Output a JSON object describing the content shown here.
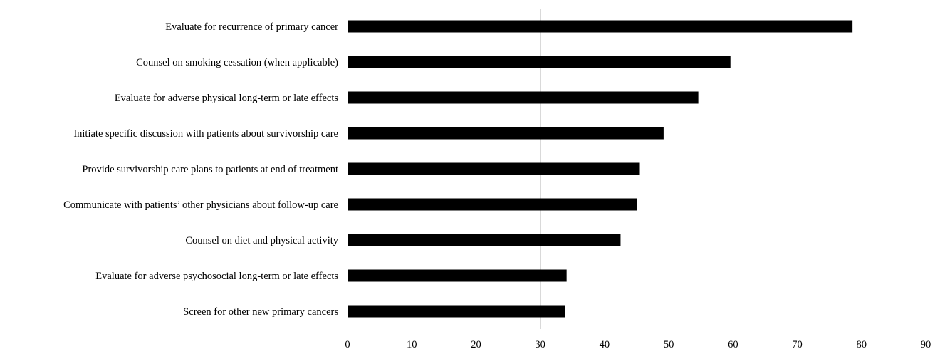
{
  "chart_data": {
    "type": "bar",
    "orientation": "horizontal",
    "title": "",
    "xlabel": "",
    "ylabel": "",
    "xlim": [
      0,
      90
    ],
    "x_ticks": [
      0,
      10,
      20,
      30,
      40,
      50,
      60,
      70,
      80,
      90
    ],
    "grid": "vertical",
    "legend": "none",
    "bar_color": "#000000",
    "categories": [
      "Evaluate for recurrence of primary cancer",
      "Counsel on smoking cessation (when applicable)",
      "Evaluate for adverse physical long-term or late effects",
      "Initiate specific discussion with patients about survivorship care",
      "Provide survivorship care plans to patients at end of  treatment",
      "Communicate with patients’ other physicians about follow-up care",
      "Counsel on diet and physical activity",
      "Evaluate for adverse psychosocial long-term or late effects",
      "Screen for other new primary cancers"
    ],
    "values": [
      78.6,
      59.6,
      54.6,
      49.2,
      45.5,
      45.1,
      42.5,
      34.1,
      33.9
    ]
  }
}
